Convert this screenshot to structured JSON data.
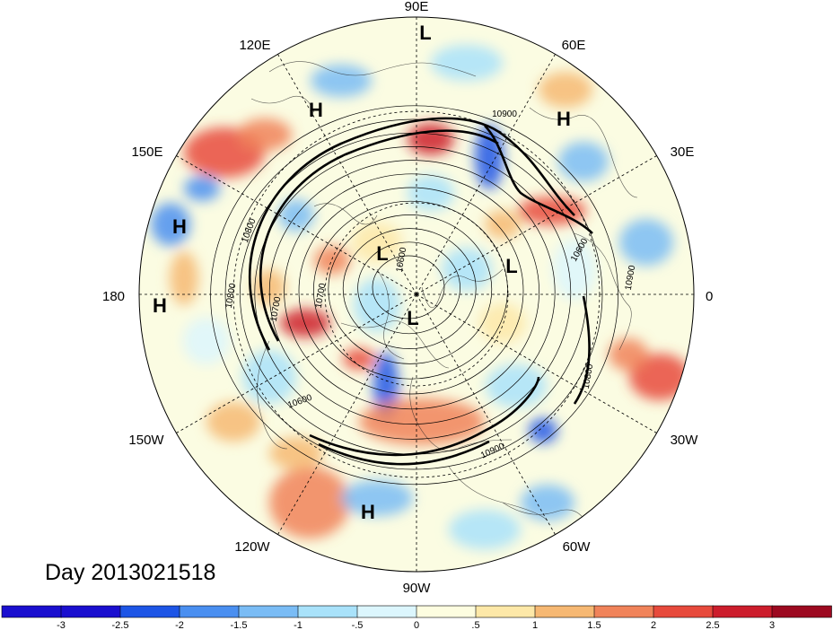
{
  "map": {
    "projection": "north polar stereographic",
    "title": "Day 2013021518",
    "longitude_labels": [
      "90E",
      "60E",
      "30E",
      "0",
      "30W",
      "60W",
      "90W",
      "120W",
      "150W",
      "180",
      "150E",
      "120E"
    ],
    "pressure_centers": [
      {
        "name": "high-center",
        "text": "H"
      },
      {
        "name": "high-center",
        "text": "H"
      },
      {
        "name": "high-center",
        "text": "H"
      },
      {
        "name": "high-center",
        "text": "H"
      },
      {
        "name": "high-center",
        "text": "H"
      },
      {
        "name": "low-center",
        "text": "L"
      },
      {
        "name": "low-center",
        "text": "L"
      },
      {
        "name": "low-center",
        "text": "L"
      },
      {
        "name": "low-center",
        "text": "L"
      }
    ],
    "contour_labels": [
      "10900",
      "10800",
      "10700",
      "10700",
      "10600",
      "10600",
      "10800",
      "10900",
      "10800",
      "10900",
      "10600"
    ]
  },
  "colorbar": {
    "ticks": [
      "-3",
      "-2.5",
      "-2",
      "-1.5",
      "-1",
      "-.5",
      "0",
      ".5",
      "1",
      "1.5",
      "2",
      "2.5",
      "3"
    ],
    "colors": [
      "#1a0fcf",
      "#1d55e6",
      "#4a8ff0",
      "#7abcf5",
      "#a9e2fa",
      "#dcf6fd",
      "#fdfde0",
      "#fde8a8",
      "#f6b873",
      "#f0835a",
      "#e74a3c",
      "#cc1d2c",
      "#9c0920"
    ]
  }
}
